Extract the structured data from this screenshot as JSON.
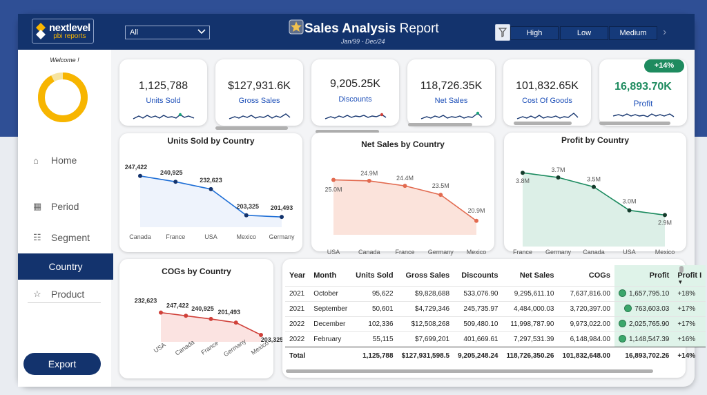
{
  "header": {
    "logo_primary": "nextlevel",
    "logo_secondary": "pbi reports",
    "filter_select": "All",
    "title_bold": "Sales Analysis",
    "title_rest": " Report",
    "date_range": "Jan/99 - Dec/24",
    "segments": [
      "High",
      "Low",
      "Medium"
    ]
  },
  "sidebar": {
    "welcome": "Welcome !",
    "donut_fill_fraction": 0.92,
    "items": [
      {
        "label": "Home",
        "icon": "home-icon"
      },
      {
        "label": "Period",
        "icon": "calendar-icon"
      },
      {
        "label": "Segment",
        "icon": "people-icon"
      },
      {
        "label": "Country",
        "icon": "globe-icon",
        "active": true
      },
      {
        "label": "Product",
        "icon": "star-icon"
      }
    ],
    "export_label": "Export"
  },
  "kpis": [
    {
      "value": "1,125,788",
      "label": "Units Sold"
    },
    {
      "value": "$127,931.6K",
      "label": "Gross Sales"
    },
    {
      "value": "9,205.25K",
      "label": "Discounts"
    },
    {
      "value": "118,726.35K",
      "label": "Net Sales"
    },
    {
      "value": "101,832.65K",
      "label": "Cost Of Goods"
    },
    {
      "value": "16,893.70K",
      "label": "Profit",
      "badge": "+14%"
    }
  ],
  "colors": {
    "navy": "#13336d",
    "units_line": "#1f6fd6",
    "net_line": "#e26a4f",
    "profit_line": "#1a8a5e",
    "cogs_line": "#d0413a"
  },
  "chart_data": [
    {
      "type": "line",
      "title": "Units Sold by Country",
      "categories": [
        "Canada",
        "France",
        "USA",
        "Mexico",
        "Germany"
      ],
      "values": [
        247422,
        240925,
        232623,
        203325,
        201493
      ],
      "labels": [
        "247,422",
        "240,925",
        "232,623",
        "203,325",
        "201,493"
      ],
      "ylim": [
        190000,
        255000
      ]
    },
    {
      "type": "area",
      "title": "Net Sales by Country",
      "categories": [
        "USA",
        "Canada",
        "France",
        "Germany",
        "Mexico"
      ],
      "values": [
        25.0,
        24.9,
        24.4,
        23.5,
        20.9
      ],
      "labels": [
        "25.0M",
        "24.9M",
        "24.4M",
        "23.5M",
        "20.9M"
      ],
      "ylim": [
        19.5,
        26
      ]
    },
    {
      "type": "area",
      "title": "Profit by Country",
      "categories": [
        "France",
        "Germany",
        "Canada",
        "USA",
        "Mexico"
      ],
      "values": [
        3.8,
        3.7,
        3.5,
        3.0,
        2.9
      ],
      "labels": [
        "3.8M",
        "3.7M",
        "3.5M",
        "3.0M",
        "2.9M"
      ],
      "ylim": [
        2.7,
        3.95
      ]
    },
    {
      "type": "area",
      "title": "COGs by Country",
      "categories": [
        "USA",
        "Canada",
        "France",
        "Germany",
        "Mexico"
      ],
      "values": [
        232623,
        247422,
        240925,
        201493,
        203325
      ],
      "labels": [
        "232,623",
        "247,422",
        "240,925",
        "201,493",
        "203,325"
      ],
      "trend": [
        0.98,
        0.84,
        0.7,
        0.54,
        0.0
      ]
    }
  ],
  "table": {
    "headers": [
      "Year",
      "Month",
      "Units Sold",
      "Gross Sales",
      "Discounts",
      "Net Sales",
      "COGs",
      "Profit",
      "Profit I"
    ],
    "rows": [
      [
        "2021",
        "October",
        "95,622",
        "$9,828,688",
        "533,076.90",
        "9,295,611.10",
        "7,637,816.00",
        "1,657,795.10",
        "+18%"
      ],
      [
        "2021",
        "September",
        "50,601",
        "$4,729,346",
        "245,735.97",
        "4,484,000.03",
        "3,720,397.00",
        "763,603.03",
        "+17%"
      ],
      [
        "2022",
        "December",
        "102,336",
        "$12,508,268",
        "509,480.10",
        "11,998,787.90",
        "9,973,022.00",
        "2,025,765.90",
        "+17%"
      ],
      [
        "2022",
        "February",
        "55,115",
        "$7,699,201",
        "401,669.61",
        "7,297,531.39",
        "6,148,984.00",
        "1,148,547.39",
        "+16%"
      ]
    ],
    "total": [
      "Total",
      "",
      "1,125,788",
      "$127,931,598.5",
      "9,205,248.24",
      "118,726,350.26",
      "101,832,648.00",
      "16,893,702.26",
      "+14%"
    ]
  }
}
